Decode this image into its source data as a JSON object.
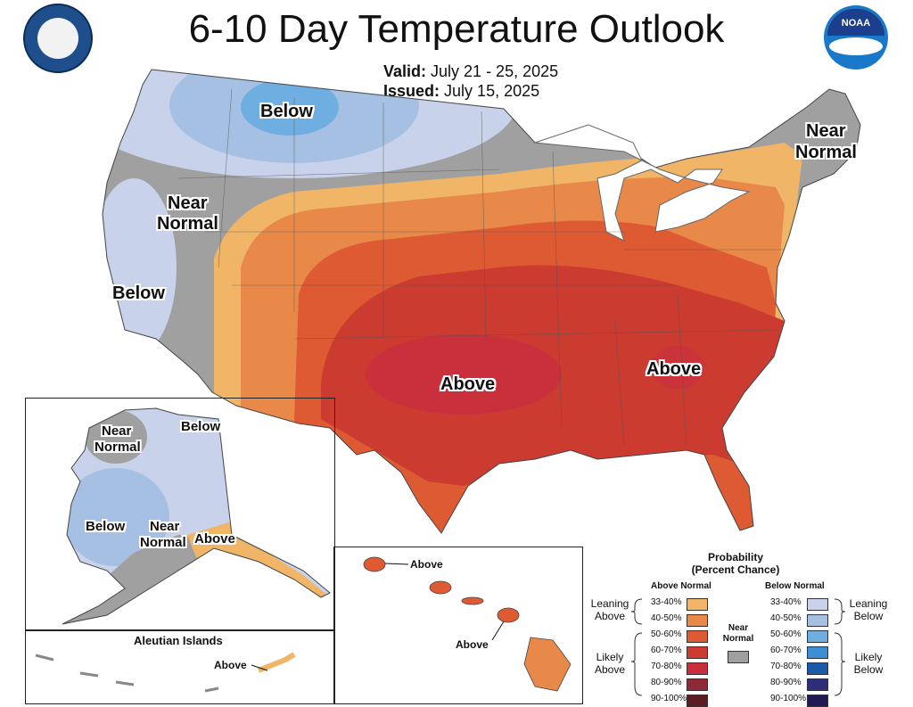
{
  "header": {
    "title": "6-10 Day Temperature Outlook",
    "valid_label": "Valid:",
    "valid_value": "July 21 - 25, 2025",
    "issued_label": "Issued:",
    "issued_value": "July 15, 2025"
  },
  "logos": {
    "left": "department-of-commerce-seal",
    "right_text": "NOAA"
  },
  "map": {
    "labels": {
      "below_north": "Below",
      "near_normal_west_1": "Near",
      "near_normal_west_2": "Normal",
      "below_west": "Below",
      "near_normal_ne_1": "Near",
      "near_normal_ne_2": "Normal",
      "above_south": "Above",
      "above_east": "Above"
    },
    "alaska": {
      "near_normal_1": "Near",
      "near_normal_2": "Normal",
      "below_north": "Below",
      "below_west": "Below",
      "near_normal_s_1": "Near",
      "near_normal_s_2": "Normal",
      "above": "Above"
    },
    "aleutian": {
      "title": "Aleutian Islands",
      "label": "Above"
    },
    "hawaii": {
      "label_north": "Above",
      "label_south": "Above"
    }
  },
  "legend": {
    "title_1": "Probability",
    "title_2": "(Percent Chance)",
    "above_header": "Above Normal",
    "below_header": "Below Normal",
    "near_normal_1": "Near",
    "near_normal_2": "Normal",
    "leaning_above_1": "Leaning",
    "leaning_above_2": "Above",
    "likely_above_1": "Likely",
    "likely_above_2": "Above",
    "leaning_below_1": "Leaning",
    "leaning_below_2": "Below",
    "likely_below_1": "Likely",
    "likely_below_2": "Below",
    "above": [
      {
        "range": "33-40%",
        "color": "#f0b567"
      },
      {
        "range": "40-50%",
        "color": "#e8894a"
      },
      {
        "range": "50-60%",
        "color": "#dd5a32"
      },
      {
        "range": "60-70%",
        "color": "#cb3b30"
      },
      {
        "range": "70-80%",
        "color": "#c92e3f"
      },
      {
        "range": "80-90%",
        "color": "#8e2a37"
      },
      {
        "range": "90-100%",
        "color": "#5c1d22"
      }
    ],
    "below": [
      {
        "range": "33-40%",
        "color": "#c8d2ea"
      },
      {
        "range": "40-50%",
        "color": "#a5c0e2"
      },
      {
        "range": "50-60%",
        "color": "#6faee0"
      },
      {
        "range": "60-70%",
        "color": "#3c8fd6"
      },
      {
        "range": "70-80%",
        "color": "#1a5aa8"
      },
      {
        "range": "80-90%",
        "color": "#2e2d7a"
      },
      {
        "range": "90-100%",
        "color": "#221a55"
      }
    ],
    "near_color": "#a0a0a0"
  },
  "colors": {
    "near": "#a0a0a0",
    "lean_above": "#f0b567",
    "above_40": "#e8894a",
    "above_50": "#dd5a32",
    "above_60": "#cb3b30",
    "above_70": "#c92e3f",
    "lean_below": "#c8d2ea",
    "below_40": "#a5c0e2",
    "below_50": "#6faee0"
  }
}
